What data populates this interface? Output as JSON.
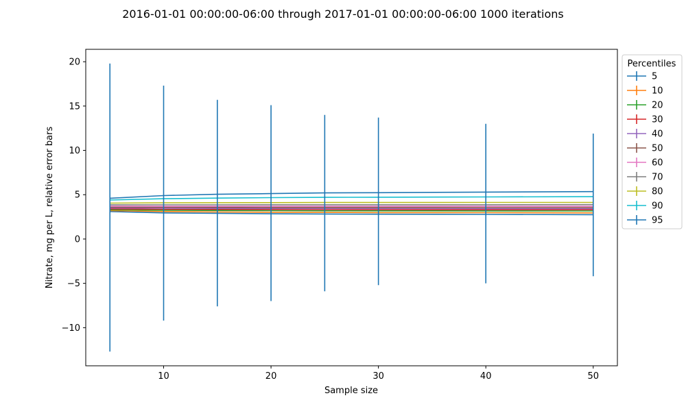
{
  "chart_data": {
    "type": "line",
    "title": "2016-01-01 00:00:00-06:00 through 2017-01-01 00:00:00-06:00 1000 iterations",
    "xlabel": "Sample size",
    "ylabel": "Nitrate, mg per L, relative error bars",
    "xlim": [
      2.75,
      52.25
    ],
    "ylim": [
      -14.3,
      21.4
    ],
    "xticks": [
      10,
      20,
      30,
      40,
      50
    ],
    "yticks": [
      -10,
      -5,
      0,
      5,
      10,
      15,
      20
    ],
    "ytick_labels": [
      "−10",
      "−5",
      "0",
      "5",
      "10",
      "15",
      "20"
    ],
    "grid": false,
    "legend": {
      "title": "Percentiles",
      "placement": "outside-right"
    },
    "x": [
      5,
      10,
      15,
      20,
      25,
      30,
      40,
      50
    ],
    "series": [
      {
        "name": "5",
        "color": "#1f77b4",
        "values": [
          3.1,
          2.95,
          2.9,
          2.85,
          2.82,
          2.8,
          2.78,
          2.75
        ]
      },
      {
        "name": "10",
        "color": "#ff7f0e",
        "values": [
          3.2,
          3.1,
          3.05,
          3.02,
          3.0,
          2.98,
          2.97,
          2.95
        ]
      },
      {
        "name": "20",
        "color": "#2ca02c",
        "values": [
          3.3,
          3.25,
          3.22,
          3.2,
          3.19,
          3.18,
          3.17,
          3.16
        ]
      },
      {
        "name": "30",
        "color": "#d62728",
        "values": [
          3.4,
          3.36,
          3.34,
          3.33,
          3.32,
          3.31,
          3.3,
          3.3
        ]
      },
      {
        "name": "40",
        "color": "#9467bd",
        "values": [
          3.5,
          3.47,
          3.46,
          3.45,
          3.44,
          3.44,
          3.43,
          3.43
        ]
      },
      {
        "name": "50",
        "color": "#8c564b",
        "values": [
          3.6,
          3.58,
          3.57,
          3.56,
          3.56,
          3.56,
          3.55,
          3.55
        ]
      },
      {
        "name": "60",
        "color": "#e377c2",
        "values": [
          3.7,
          3.69,
          3.69,
          3.69,
          3.69,
          3.69,
          3.69,
          3.69
        ]
      },
      {
        "name": "70",
        "color": "#7f7f7f",
        "values": [
          3.85,
          3.86,
          3.86,
          3.87,
          3.87,
          3.87,
          3.87,
          3.88
        ]
      },
      {
        "name": "80",
        "color": "#bcbd22",
        "values": [
          4.05,
          4.08,
          4.1,
          4.11,
          4.12,
          4.12,
          4.13,
          4.13
        ]
      },
      {
        "name": "90",
        "color": "#17becf",
        "values": [
          4.4,
          4.55,
          4.62,
          4.67,
          4.7,
          4.72,
          4.75,
          4.78
        ]
      },
      {
        "name": "95",
        "color": "#1f77b4",
        "values": [
          4.6,
          4.9,
          5.05,
          5.13,
          5.2,
          5.23,
          5.3,
          5.35
        ],
        "error_upper": [
          19.8,
          17.3,
          15.7,
          15.1,
          14.0,
          13.7,
          13.0,
          11.9
        ],
        "error_lower": [
          -12.7,
          -9.2,
          -7.6,
          -7.0,
          -5.9,
          -5.2,
          -5.0,
          -4.2
        ]
      }
    ]
  }
}
